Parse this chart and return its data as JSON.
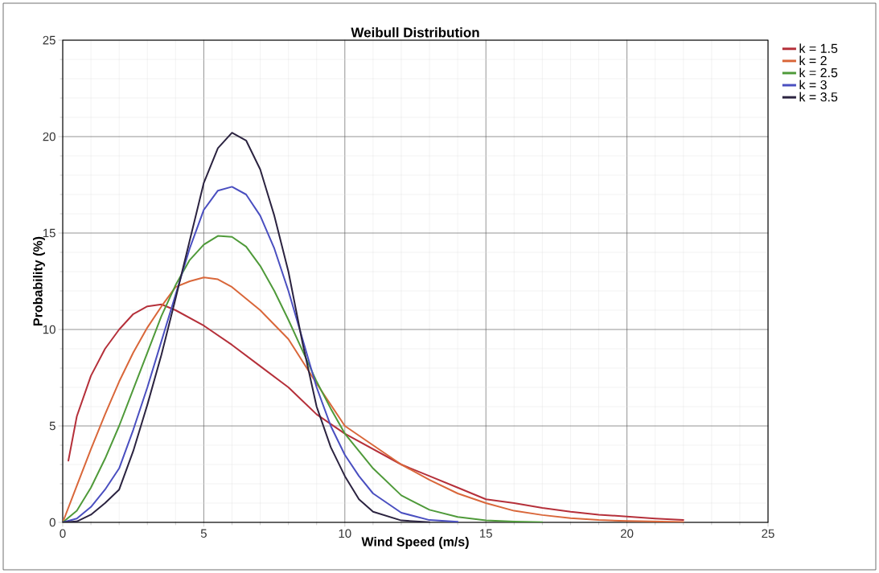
{
  "chart_data": {
    "type": "line",
    "title": "Weibull Distribution",
    "xlabel": "Wind Speed (m/s)",
    "ylabel": "Probability (%)",
    "xlim": [
      0,
      25
    ],
    "ylim": [
      0,
      25
    ],
    "xticks": [
      0,
      5,
      10,
      15,
      20,
      25
    ],
    "yticks": [
      0,
      5,
      10,
      15,
      20,
      25
    ],
    "grid": true,
    "legend": "top right",
    "marker": "none",
    "line_style": "solid",
    "series": [
      {
        "name": "k = 1.5",
        "color": "#b5303a",
        "x": [
          0.2,
          0.5,
          1,
          1.5,
          2,
          2.5,
          3,
          3.5,
          4,
          5,
          6,
          7,
          8,
          9,
          10,
          11,
          12,
          13,
          14,
          15,
          16,
          17,
          18,
          19,
          20,
          21,
          22
        ],
        "values": [
          3.2,
          5.5,
          7.6,
          9.0,
          10.0,
          10.8,
          11.2,
          11.3,
          11.0,
          10.2,
          9.2,
          8.1,
          7.0,
          5.6,
          4.6,
          3.8,
          3.0,
          2.4,
          1.8,
          1.2,
          1.0,
          0.75,
          0.55,
          0.4,
          0.3,
          0.2,
          0.13
        ]
      },
      {
        "name": "k = 2",
        "color": "#d9673a",
        "x": [
          0,
          0.5,
          1,
          1.5,
          2,
          2.5,
          3,
          3.5,
          4,
          4.5,
          5,
          5.5,
          6,
          7,
          8,
          9,
          10,
          11,
          12,
          13,
          14,
          15,
          16,
          17,
          18,
          19,
          20,
          22
        ],
        "values": [
          0,
          1.9,
          3.8,
          5.6,
          7.3,
          8.8,
          10.1,
          11.2,
          12.2,
          12.5,
          12.7,
          12.6,
          12.2,
          11.0,
          9.5,
          7.2,
          5.0,
          4.0,
          3.0,
          2.2,
          1.5,
          1.0,
          0.6,
          0.38,
          0.22,
          0.12,
          0.07,
          0.02
        ]
      },
      {
        "name": "k = 2.5",
        "color": "#4f9a3a",
        "x": [
          0,
          0.5,
          1,
          1.5,
          2,
          2.5,
          3,
          3.5,
          4,
          4.5,
          5,
          5.5,
          6,
          6.5,
          7,
          7.5,
          8,
          8.5,
          9,
          9.5,
          10,
          11,
          12,
          13,
          14,
          15,
          16,
          17
        ],
        "values": [
          0,
          0.6,
          1.8,
          3.3,
          5.0,
          6.9,
          8.8,
          10.7,
          12.3,
          13.6,
          14.4,
          14.85,
          14.8,
          14.3,
          13.3,
          12.0,
          10.5,
          8.9,
          7.3,
          5.9,
          4.6,
          2.8,
          1.4,
          0.65,
          0.28,
          0.1,
          0.04,
          0.01
        ]
      },
      {
        "name": "k = 3",
        "color": "#4a4fc0",
        "x": [
          0,
          0.5,
          1,
          1.5,
          2,
          2.5,
          3,
          3.5,
          4,
          4.5,
          5,
          5.5,
          6,
          6.5,
          7,
          7.5,
          8,
          8.5,
          9,
          9.5,
          10,
          10.5,
          11,
          12,
          13,
          14
        ],
        "values": [
          0,
          0.2,
          0.8,
          1.7,
          2.8,
          4.8,
          7.0,
          9.4,
          11.8,
          14.2,
          16.2,
          17.2,
          17.4,
          17.0,
          15.9,
          14.2,
          12.0,
          9.5,
          7.0,
          5.0,
          3.5,
          2.4,
          1.5,
          0.5,
          0.12,
          0.03
        ]
      },
      {
        "name": "k = 3.5",
        "color": "#2b2340",
        "x": [
          0,
          0.5,
          1,
          1.5,
          2,
          2.5,
          3,
          3.5,
          4,
          4.5,
          5,
          5.5,
          6,
          6.5,
          7,
          7.5,
          8,
          8.5,
          9,
          9.5,
          10,
          10.5,
          11,
          12,
          13
        ],
        "values": [
          0,
          0.05,
          0.4,
          1.0,
          1.7,
          3.7,
          6.1,
          8.7,
          11.6,
          14.6,
          17.6,
          19.4,
          20.2,
          19.8,
          18.3,
          15.9,
          13.0,
          9.3,
          6.0,
          3.9,
          2.4,
          1.2,
          0.55,
          0.1,
          0.01
        ]
      }
    ]
  }
}
